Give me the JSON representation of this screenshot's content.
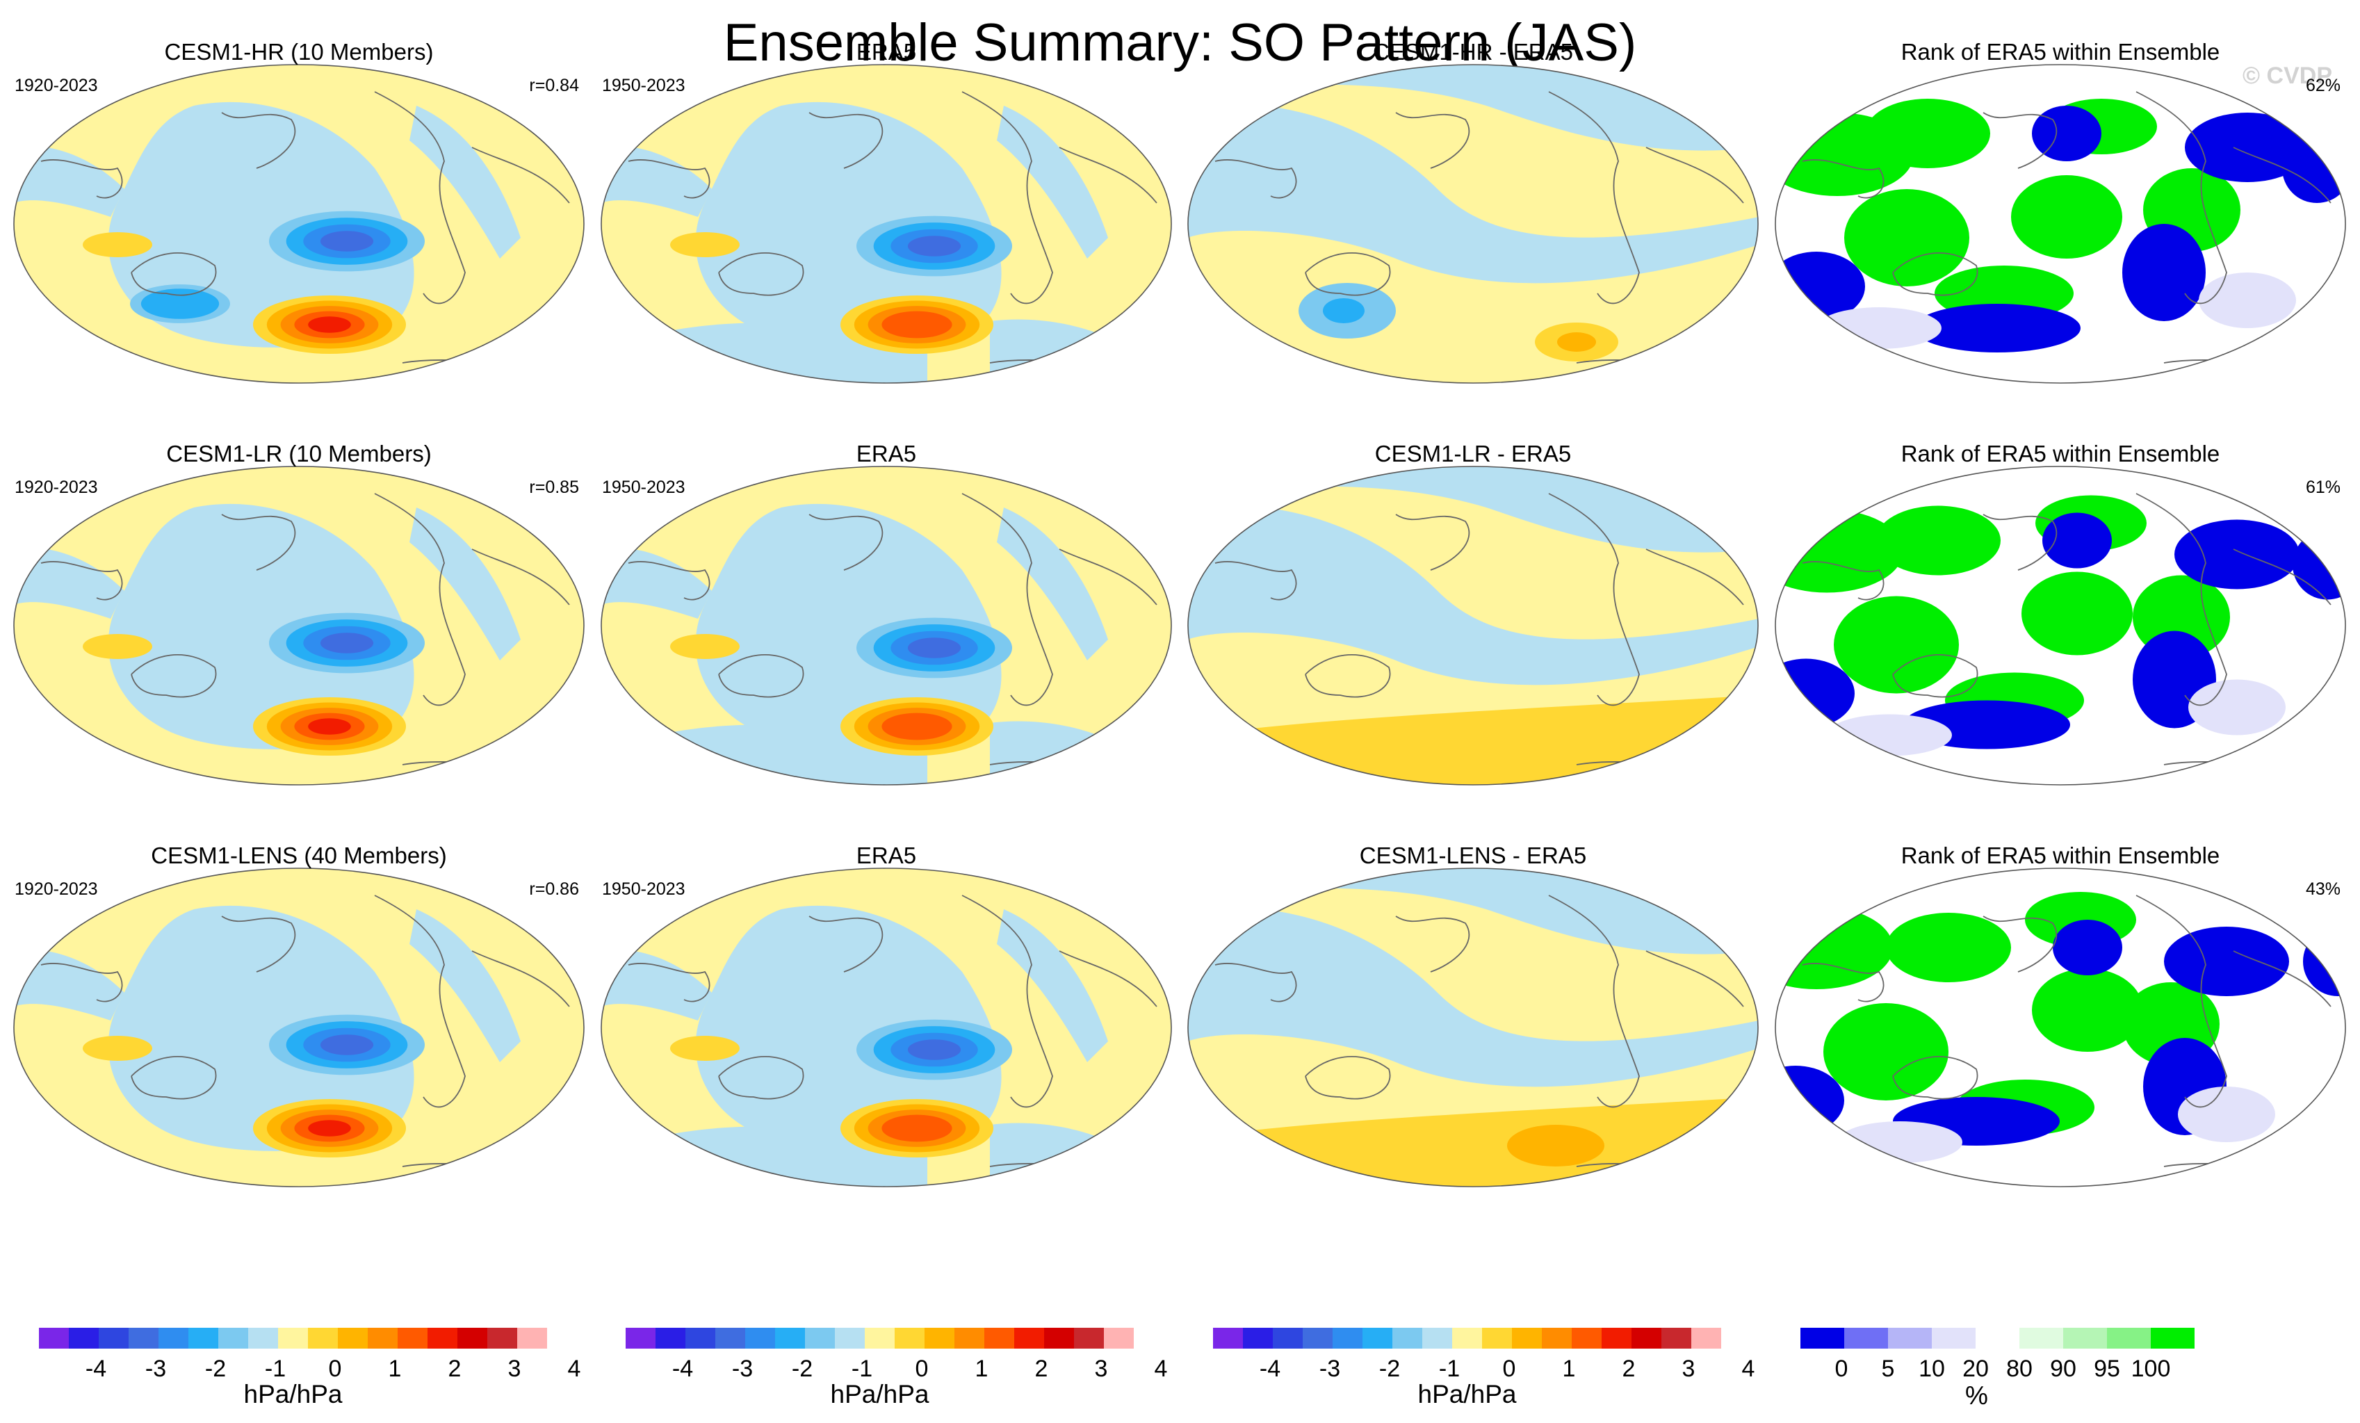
{
  "title": "Ensemble Summary: SO Pattern (JAS)",
  "watermark": "© CVDP",
  "colors": {
    "yellow": "#fff59e",
    "lightblue": "#b6e0f2",
    "land": "#666666"
  },
  "rows": [
    {
      "panels": [
        {
          "kind": "model",
          "title": "CESM1-HR (10 Members)",
          "left": "1920-2023",
          "right": "r=0.84"
        },
        {
          "kind": "obs",
          "title": "ERA5",
          "left": "1950-2023",
          "right": ""
        },
        {
          "kind": "diff",
          "title": "CESM1-HR - ERA5",
          "left": "",
          "right": ""
        },
        {
          "kind": "rank",
          "title": "Rank of ERA5 within Ensemble",
          "left": "",
          "right": "62%"
        }
      ]
    },
    {
      "panels": [
        {
          "kind": "model",
          "title": "CESM1-LR (10 Members)",
          "left": "1920-2023",
          "right": "r=0.85"
        },
        {
          "kind": "obs",
          "title": "ERA5",
          "left": "1950-2023",
          "right": ""
        },
        {
          "kind": "diff",
          "title": "CESM1-LR - ERA5",
          "left": "",
          "right": ""
        },
        {
          "kind": "rank",
          "title": "Rank of ERA5 within Ensemble",
          "left": "",
          "right": "61%"
        }
      ]
    },
    {
      "panels": [
        {
          "kind": "model",
          "title": "CESM1-LENS (40 Members)",
          "left": "1920-2023",
          "right": "r=0.86"
        },
        {
          "kind": "obs",
          "title": "ERA5",
          "left": "1950-2023",
          "right": ""
        },
        {
          "kind": "diff",
          "title": "CESM1-LENS - ERA5",
          "left": "",
          "right": ""
        },
        {
          "kind": "rank",
          "title": "Rank of ERA5 within Ensemble",
          "left": "",
          "right": "43%"
        }
      ]
    }
  ],
  "chart_data": {
    "type": "heatmap",
    "title": "Ensemble Summary: SO Pattern (JAS)",
    "season": "JAS",
    "pattern_correlations": [
      {
        "model": "CESM1-HR (10 Members)",
        "r": 0.84,
        "rank_stat": "62%"
      },
      {
        "model": "CESM1-LR (10 Members)",
        "r": 0.85,
        "rank_stat": "61%"
      },
      {
        "model": "CESM1-LENS (40 Members)",
        "r": 0.86,
        "rank_stat": "43%"
      }
    ],
    "pattern_colorbar": {
      "units": "hPa/hPa",
      "ticks": [
        "-4",
        "-3",
        "-2",
        "-1",
        "0",
        "1",
        "2",
        "3",
        "4"
      ],
      "colors": [
        "#7a26e8",
        "#2a1ee6",
        "#2e46e0",
        "#3f6de0",
        "#2f8df0",
        "#26aef5",
        "#7cc9f0",
        "#b6e0f2",
        "#fff59e",
        "#ffd733",
        "#ffb400",
        "#ff8c00",
        "#ff5a00",
        "#f21c00",
        "#d40000",
        "#c8282d",
        "#ffb3b3"
      ]
    },
    "rank_colorbar": {
      "units": "%",
      "ticks": [
        "0",
        "5",
        "10",
        "20",
        "80",
        "90",
        "95",
        "100"
      ],
      "colors": [
        "#0000e6",
        "#6f6ff5",
        "#b5b5f7",
        "#e2e2fa",
        "#ffffff",
        "#e0fbe0",
        "#b5f5b5",
        "#86f286",
        "#00ee00"
      ]
    }
  }
}
